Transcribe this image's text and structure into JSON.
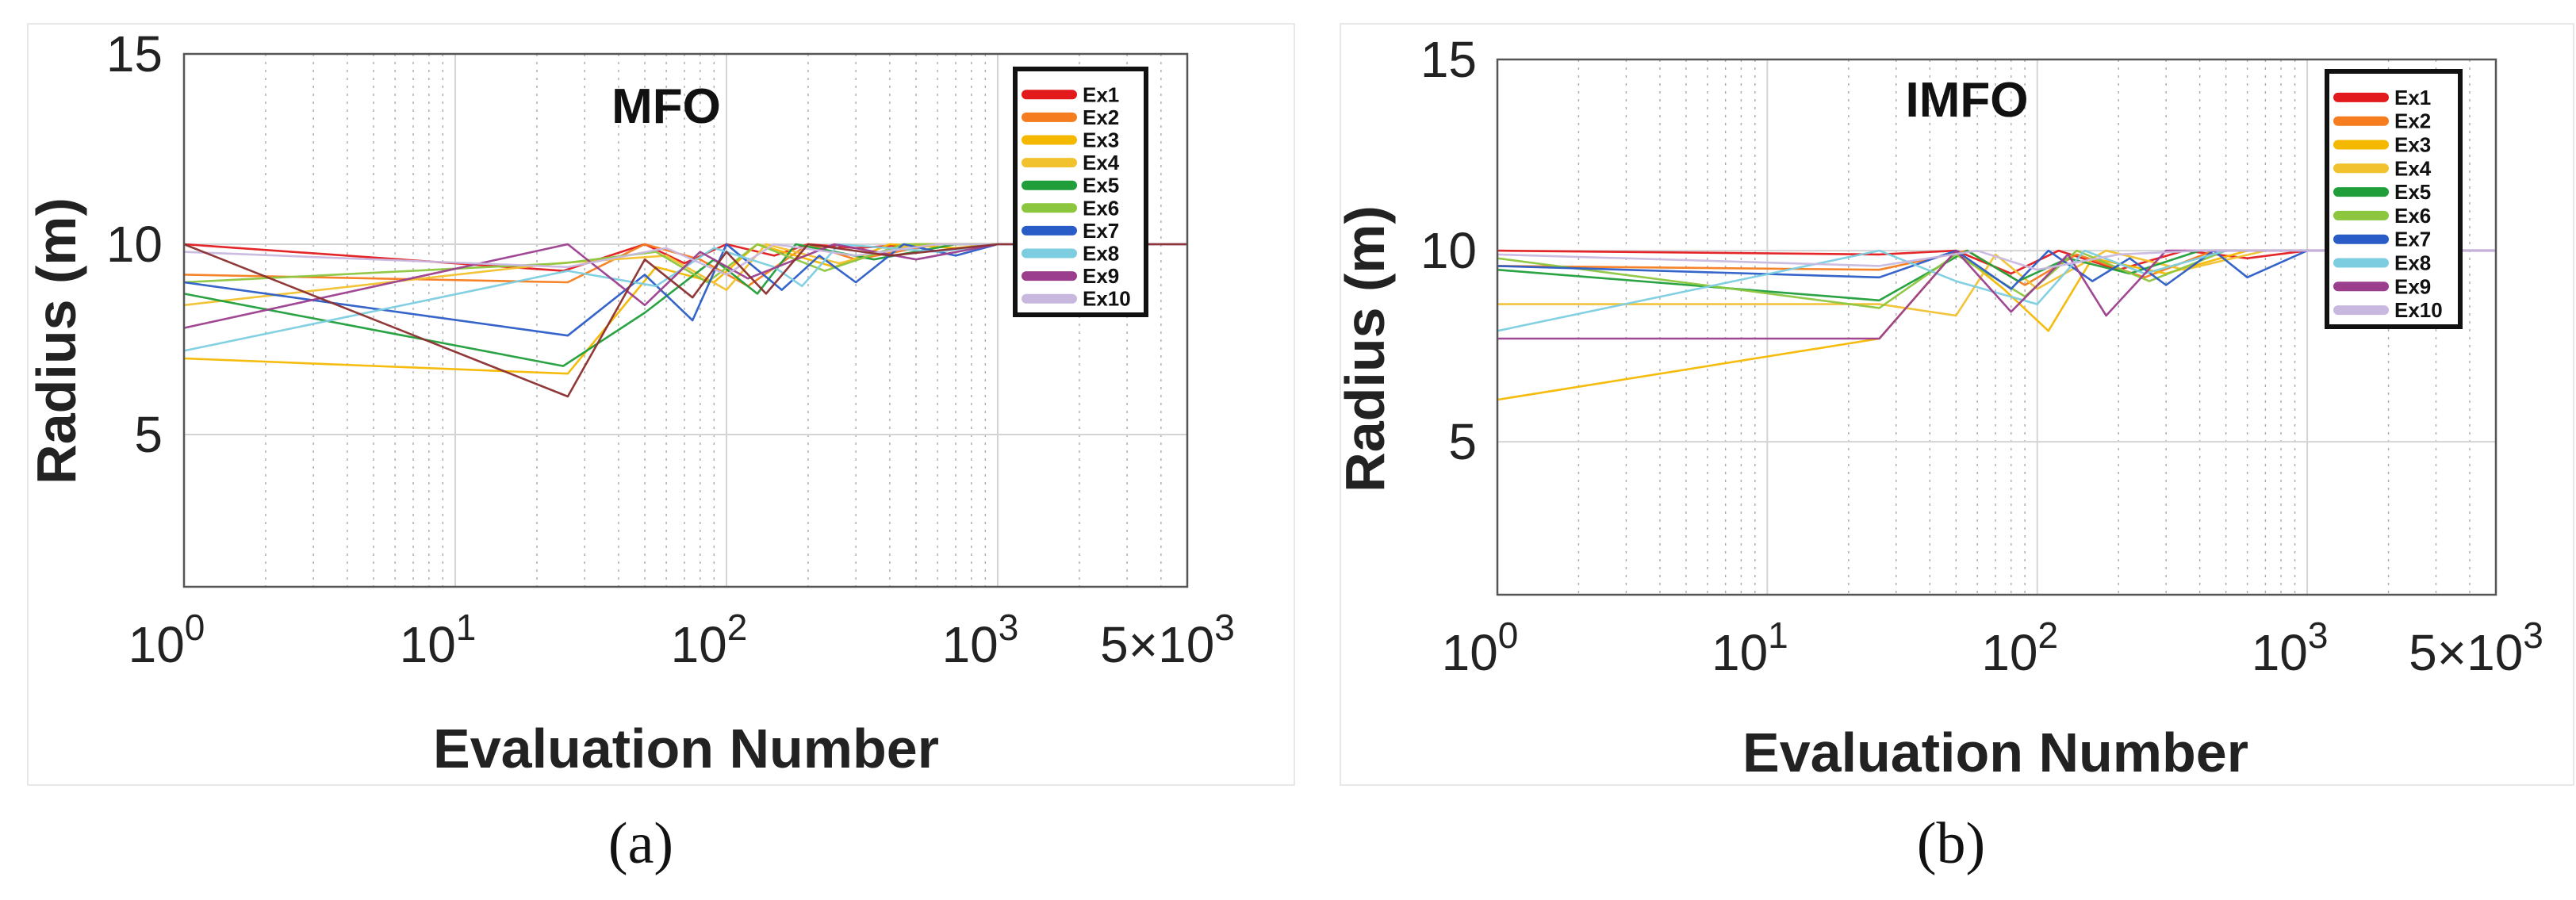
{
  "chart_data": [
    {
      "type": "line",
      "panel_label": "(a)",
      "title": "MFO",
      "xlabel": "Evaluation Number",
      "ylabel": "Radius (m)",
      "xscale": "log",
      "xlim": [
        1,
        5000
      ],
      "ylim": [
        1,
        15
      ],
      "xticks": [
        1,
        10,
        100,
        1000,
        5000
      ],
      "xtick_labels": [
        {
          "base": "10",
          "exp": "0"
        },
        {
          "base": "10",
          "exp": "1"
        },
        {
          "base": "10",
          "exp": "2"
        },
        {
          "base": "10",
          "exp": "3"
        },
        {
          "base": "5×10",
          "exp": "3"
        }
      ],
      "yticks": [
        5,
        10,
        15
      ],
      "ytick_labels": [
        "5",
        "10",
        "15"
      ],
      "legend_position": "top-right",
      "series": [
        {
          "name": "Ex1",
          "color": "#e31a1c",
          "x": [
            1,
            25,
            50,
            70,
            100,
            150,
            200,
            300,
            500,
            800,
            1000,
            5000
          ],
          "y": [
            10.0,
            9.3,
            10.0,
            9.5,
            10.0,
            9.7,
            10.0,
            9.9,
            10.0,
            10.0,
            10.0,
            10.0
          ]
        },
        {
          "name": "Ex2",
          "color": "#f57c1f",
          "x": [
            1,
            26,
            50,
            80,
            120,
            200,
            300,
            600,
            1000,
            5000
          ],
          "y": [
            9.2,
            9.0,
            10.0,
            9.6,
            8.9,
            10.0,
            9.6,
            10.0,
            10.0,
            10.0
          ]
        },
        {
          "name": "Ex3",
          "color": "#f5b800",
          "x": [
            1,
            26,
            55,
            90,
            130,
            250,
            400,
            700,
            1000,
            5000
          ],
          "y": [
            7.0,
            6.6,
            9.4,
            9.0,
            10.0,
            9.4,
            10.0,
            9.9,
            10.0,
            10.0
          ]
        },
        {
          "name": "Ex4",
          "color": "#f2c12e",
          "x": [
            1,
            24,
            60,
            100,
            140,
            260,
            500,
            1000,
            5000
          ],
          "y": [
            8.4,
            9.5,
            9.7,
            8.8,
            10.0,
            9.5,
            10.0,
            10.0,
            10.0
          ]
        },
        {
          "name": "Ex5",
          "color": "#1f9e3a",
          "x": [
            1,
            25,
            50,
            90,
            130,
            180,
            350,
            700,
            1000,
            5000
          ],
          "y": [
            8.7,
            6.8,
            8.2,
            9.6,
            8.7,
            10.0,
            9.6,
            10.0,
            10.0,
            10.0
          ]
        },
        {
          "name": "Ex6",
          "color": "#8cc63f",
          "x": [
            1,
            25,
            55,
            85,
            130,
            230,
            450,
            1000,
            5000
          ],
          "y": [
            9.0,
            9.5,
            9.8,
            9.0,
            10.0,
            9.3,
            10.0,
            10.0,
            10.0
          ]
        },
        {
          "name": "Ex7",
          "color": "#2a5cc7",
          "x": [
            1,
            26,
            50,
            75,
            100,
            160,
            220,
            300,
            450,
            700,
            1000,
            5000
          ],
          "y": [
            9.0,
            7.6,
            9.2,
            8.0,
            10.0,
            8.8,
            9.7,
            9.0,
            10.0,
            9.7,
            10.0,
            10.0
          ]
        },
        {
          "name": "Ex8",
          "color": "#7ccde0",
          "x": [
            1,
            26,
            55,
            90,
            150,
            190,
            260,
            600,
            1000,
            5000
          ],
          "y": [
            7.2,
            9.3,
            8.9,
            9.9,
            9.4,
            8.9,
            10.0,
            9.8,
            10.0,
            10.0
          ]
        },
        {
          "name": "Ex9",
          "color": "#9b3e8e",
          "x": [
            1,
            26,
            50,
            80,
            120,
            250,
            500,
            1000,
            5000
          ],
          "y": [
            7.8,
            10.0,
            8.4,
            9.8,
            9.1,
            10.0,
            9.6,
            10.0,
            10.0
          ]
        },
        {
          "name": "Ex10",
          "color": "#c8b8e0",
          "x": [
            1,
            26,
            60,
            100,
            150,
            300,
            600,
            1000,
            5000
          ],
          "y": [
            9.8,
            9.4,
            9.9,
            9.2,
            10.0,
            9.7,
            10.0,
            10.0,
            10.0
          ]
        },
        {
          "name": "Ex1-dark",
          "legend": false,
          "color": "#8b2e2e",
          "x": [
            1,
            26,
            50,
            75,
            100,
            140,
            200,
            400,
            1000,
            5000
          ],
          "y": [
            10.0,
            6.0,
            9.6,
            8.6,
            9.8,
            8.7,
            10.0,
            9.7,
            10.0,
            10.0
          ]
        }
      ]
    },
    {
      "type": "line",
      "panel_label": "(b)",
      "title": "IMFO",
      "xlabel": "Evaluation Number",
      "ylabel": "Radius (m)",
      "xscale": "log",
      "xlim": [
        1,
        5000
      ],
      "ylim": [
        1,
        15
      ],
      "xticks": [
        1,
        10,
        100,
        1000,
        5000
      ],
      "xtick_labels": [
        {
          "base": "10",
          "exp": "0"
        },
        {
          "base": "10",
          "exp": "1"
        },
        {
          "base": "10",
          "exp": "2"
        },
        {
          "base": "10",
          "exp": "3"
        },
        {
          "base": "5×10",
          "exp": "3"
        }
      ],
      "yticks": [
        5,
        10,
        15
      ],
      "ytick_labels": [
        "5",
        "10",
        "15"
      ],
      "legend_position": "top-right",
      "series": [
        {
          "name": "Ex1",
          "color": "#e31a1c",
          "x": [
            1,
            26,
            50,
            80,
            120,
            200,
            350,
            600,
            1000,
            5000
          ],
          "y": [
            10.0,
            9.9,
            10.0,
            9.4,
            10.0,
            9.5,
            10.0,
            9.8,
            10.0,
            10.0
          ]
        },
        {
          "name": "Ex2",
          "color": "#f57c1f",
          "x": [
            1,
            26,
            55,
            90,
            140,
            250,
            450,
            1000,
            5000
          ],
          "y": [
            9.6,
            9.5,
            10.0,
            9.1,
            9.9,
            9.3,
            10.0,
            10.0,
            10.0
          ]
        },
        {
          "name": "Ex3",
          "color": "#f5b800",
          "x": [
            1,
            26,
            50,
            75,
            110,
            160,
            300,
            600,
            1000,
            5000
          ],
          "y": [
            6.1,
            7.7,
            10.0,
            9.0,
            7.9,
            9.8,
            9.4,
            10.0,
            10.0,
            10.0
          ]
        },
        {
          "name": "Ex4",
          "color": "#f2c12e",
          "x": [
            1,
            26,
            50,
            70,
            100,
            180,
            350,
            700,
            1000,
            5000
          ],
          "y": [
            8.6,
            8.6,
            8.3,
            9.9,
            9.0,
            10.0,
            9.5,
            10.0,
            10.0,
            10.0
          ]
        },
        {
          "name": "Ex5",
          "color": "#1f9e3a",
          "x": [
            1,
            26,
            55,
            85,
            130,
            220,
            400,
            1000,
            5000
          ],
          "y": [
            9.5,
            8.7,
            10.0,
            9.2,
            9.8,
            9.4,
            10.0,
            10.0,
            10.0
          ]
        },
        {
          "name": "Ex6",
          "color": "#8cc63f",
          "x": [
            1,
            26,
            50,
            90,
            140,
            260,
            500,
            1000,
            5000
          ],
          "y": [
            9.8,
            8.5,
            9.9,
            8.8,
            10.0,
            9.2,
            10.0,
            10.0,
            10.0
          ]
        },
        {
          "name": "Ex7",
          "color": "#2a5cc7",
          "x": [
            1,
            26,
            50,
            80,
            110,
            160,
            220,
            300,
            450,
            600,
            1000,
            5000
          ],
          "y": [
            9.6,
            9.3,
            10.0,
            9.0,
            10.0,
            9.2,
            9.8,
            9.1,
            10.0,
            9.3,
            10.0,
            10.0
          ]
        },
        {
          "name": "Ex8",
          "color": "#7ccde0",
          "x": [
            1,
            26,
            50,
            100,
            150,
            250,
            500,
            1000,
            5000
          ],
          "y": [
            7.9,
            10.0,
            9.2,
            8.6,
            10.0,
            9.4,
            10.0,
            10.0,
            10.0
          ]
        },
        {
          "name": "Ex9",
          "color": "#9b3e8e",
          "x": [
            1,
            26,
            50,
            80,
            130,
            180,
            300,
            1000,
            5000
          ],
          "y": [
            7.7,
            7.7,
            10.0,
            8.4,
            9.9,
            8.3,
            10.0,
            10.0,
            10.0
          ]
        },
        {
          "name": "Ex10",
          "color": "#c8b8e0",
          "x": [
            1,
            26,
            60,
            100,
            200,
            400,
            1000,
            5000
          ],
          "y": [
            9.9,
            9.6,
            10.0,
            9.5,
            9.9,
            10.0,
            10.0,
            10.0
          ]
        }
      ]
    }
  ]
}
